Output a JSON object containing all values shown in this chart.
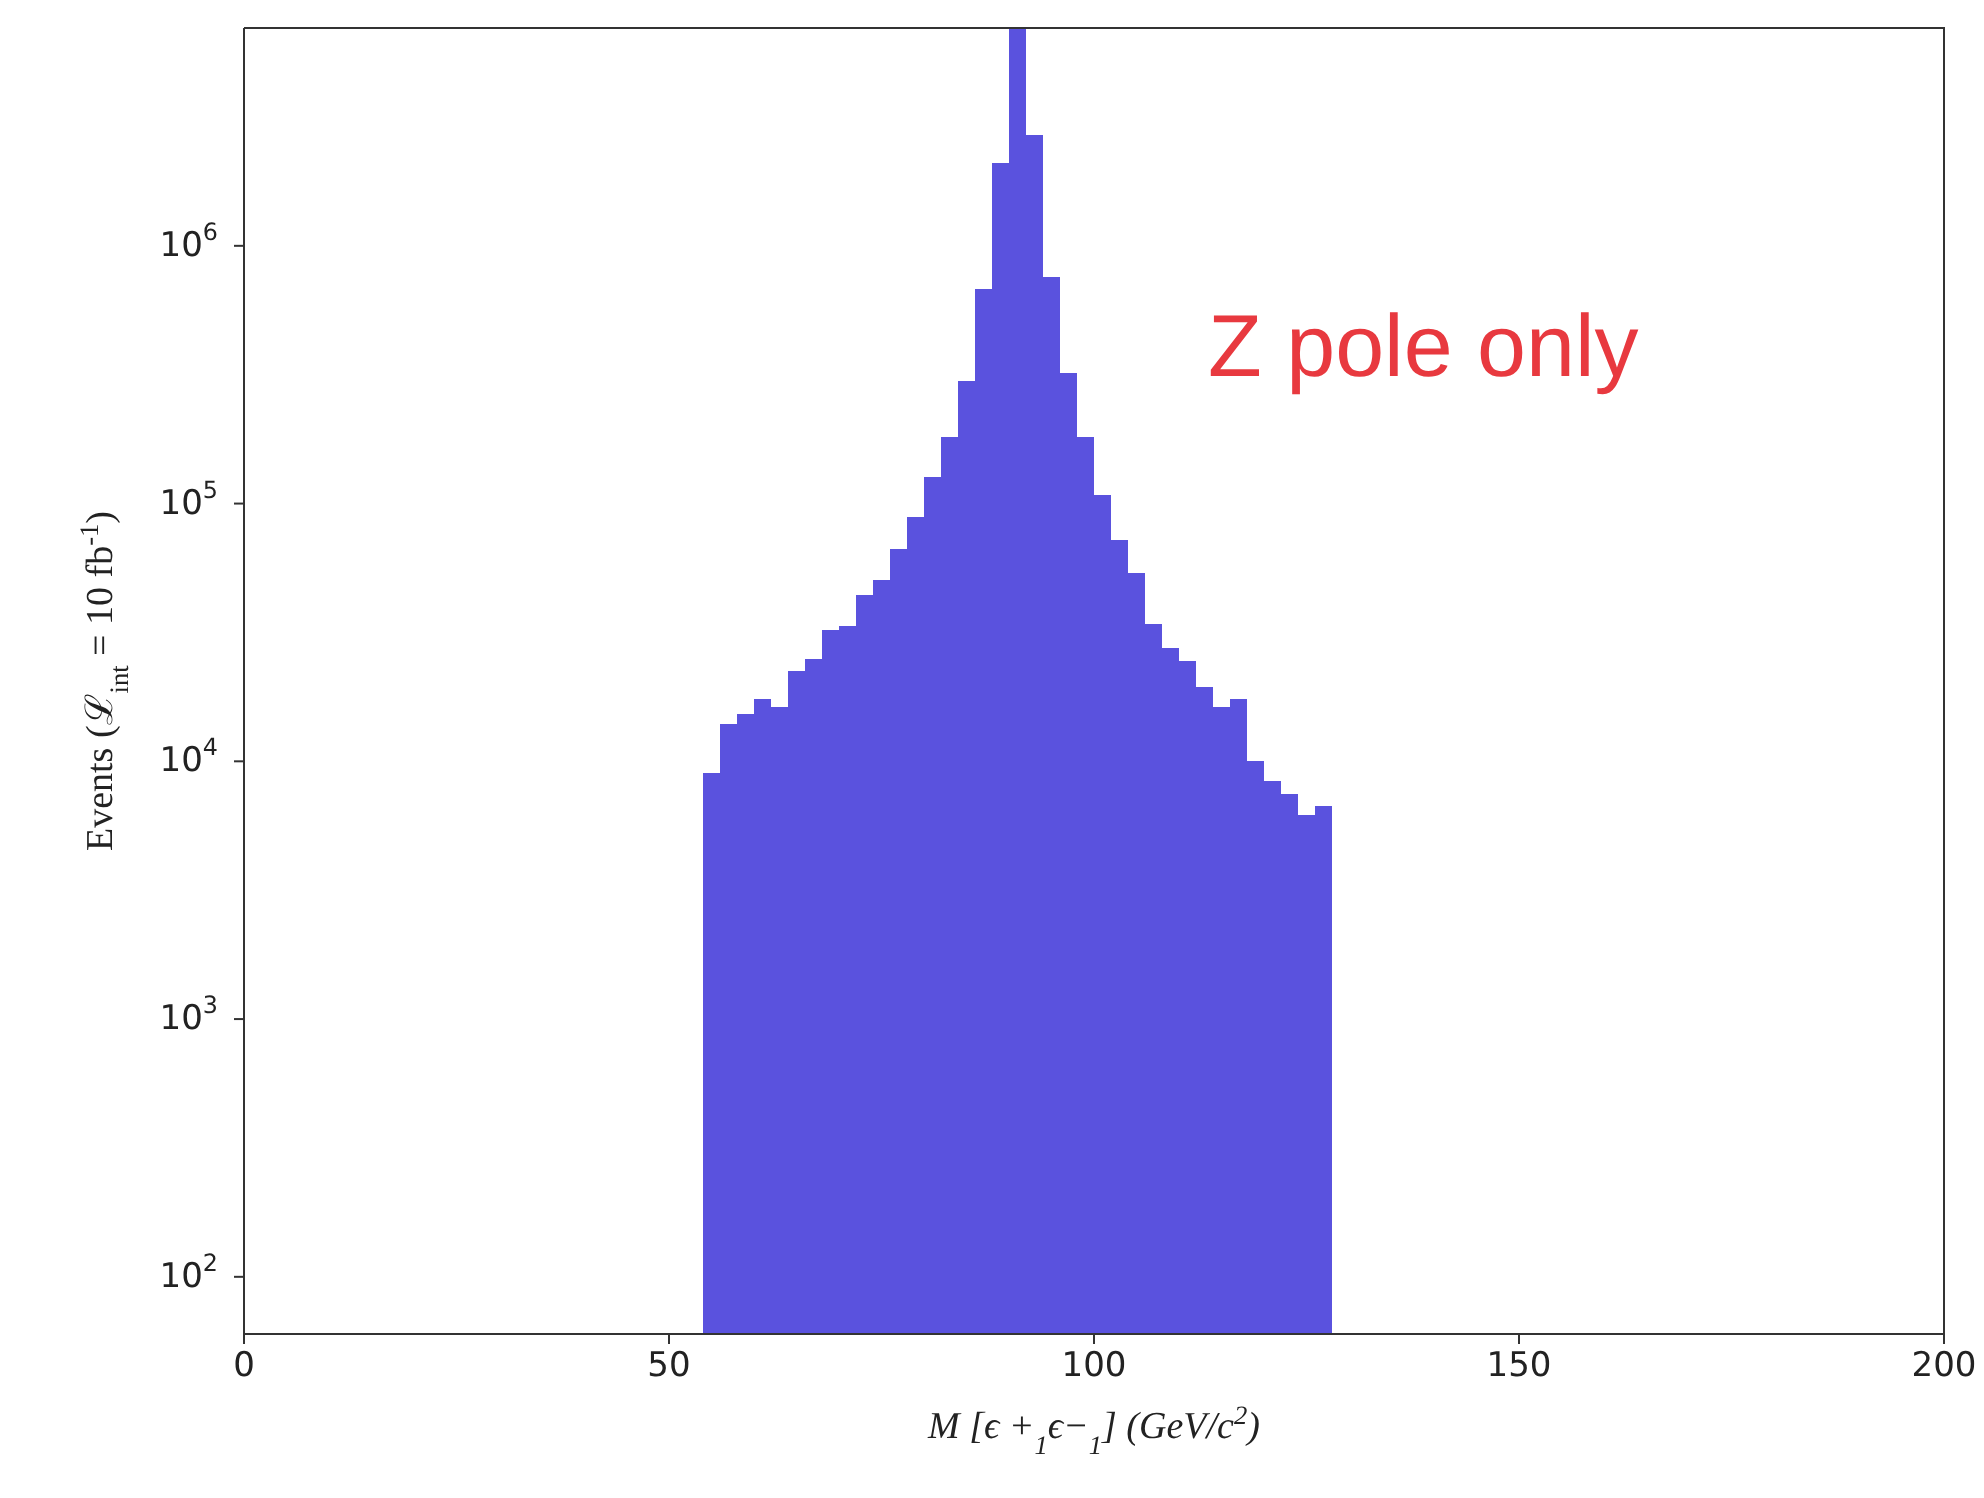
{
  "chart_data": {
    "type": "histogram",
    "bins": [
      54,
      56,
      58,
      60,
      62,
      64,
      66,
      68,
      70,
      72,
      74,
      76,
      78,
      80,
      82,
      84,
      86,
      88,
      90,
      92,
      94,
      96,
      98,
      100,
      102,
      104,
      106,
      108,
      110,
      112,
      114,
      116,
      118,
      120,
      122,
      124,
      126,
      128
    ],
    "values": [
      9000,
      14000,
      15300,
      17500,
      16300,
      22500,
      25000,
      32300,
      33600,
      44200,
      50400,
      66700,
      88700,
      127000,
      181000,
      300000,
      680000,
      2100000,
      7000000,
      2700000,
      760000,
      320000,
      181000,
      108000,
      72000,
      54000,
      34200,
      27500,
      24400,
      19500,
      16300,
      17500,
      10000,
      8400,
      7500,
      6200,
      6700
    ],
    "color": "#5a52de",
    "xlabel": "M [ϵ +$_{1}$ϵ−$_{1}$] (GeV/c$^{2}$)",
    "ylabel": "Events (ℒ$_{int}$ = 10 fb$^{-1}$)",
    "xlim": [
      0,
      200
    ],
    "xticks": [
      0,
      50,
      100,
      150,
      200
    ],
    "ylim": [
      60,
      7000000
    ],
    "yticks": [
      {
        "value": 100,
        "label": "10$^{2}$"
      },
      {
        "value": 1000,
        "label": "10$^{3}$"
      },
      {
        "value": 10000,
        "label": "10$^{4}$"
      },
      {
        "value": 100000,
        "label": "10$^{5}$"
      },
      {
        "value": 1000000,
        "label": "10$^{6}$"
      }
    ],
    "log": "y",
    "annotations": [
      {
        "text": "Z pole only"
      }
    ]
  }
}
